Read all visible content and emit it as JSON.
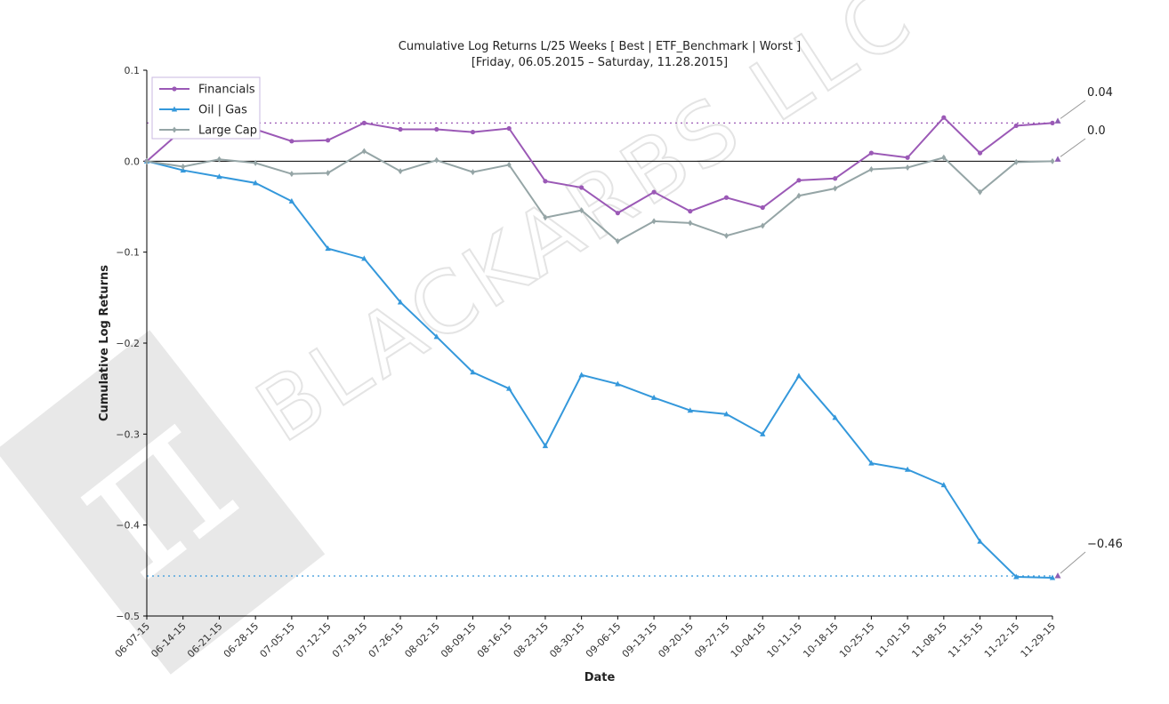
{
  "chart_data": {
    "type": "line",
    "title": "Cumulative Log Returns L/25 Weeks [ Best | ETF_Benchmark | Worst ]",
    "subtitle": "[Friday, 06.05.2015 – Saturday, 11.28.2015]",
    "xlabel": "Date",
    "ylabel": "Cumulative Log Returns",
    "ylim": [
      -0.5,
      0.1
    ],
    "yticks": [
      0.1,
      0.0,
      -0.1,
      -0.2,
      -0.3,
      -0.4,
      -0.5
    ],
    "ytick_labels": [
      "0.1",
      "0.0",
      "−0.1",
      "−0.2",
      "−0.3",
      "−0.4",
      "−0.5"
    ],
    "legend_position": "top-left",
    "categories": [
      "06-07-15",
      "06-14-15",
      "06-21-15",
      "06-28-15",
      "07-05-15",
      "07-12-15",
      "07-19-15",
      "07-26-15",
      "08-02-15",
      "08-09-15",
      "08-16-15",
      "08-23-15",
      "08-30-15",
      "09-06-15",
      "09-13-15",
      "09-20-15",
      "09-27-15",
      "10-04-15",
      "10-11-15",
      "10-18-15",
      "10-25-15",
      "11-01-15",
      "11-08-15",
      "11-15-15",
      "11-22-15",
      "11-29-15"
    ],
    "series": [
      {
        "name": "Financials",
        "color": "#9b59b6",
        "marker": "circle",
        "values": [
          0.0,
          0.035,
          0.03,
          0.035,
          0.022,
          0.023,
          0.042,
          0.035,
          0.035,
          0.032,
          0.036,
          -0.022,
          -0.029,
          -0.057,
          -0.034,
          -0.055,
          -0.04,
          -0.051,
          -0.021,
          -0.019,
          0.009,
          0.004,
          0.048,
          0.009,
          0.039,
          0.042
        ]
      },
      {
        "name": "Oil | Gas",
        "color": "#3498db",
        "marker": "triangle",
        "values": [
          0.0,
          -0.01,
          -0.017,
          -0.024,
          -0.044,
          -0.096,
          -0.107,
          -0.155,
          -0.193,
          -0.232,
          -0.25,
          -0.313,
          -0.235,
          -0.245,
          -0.26,
          -0.274,
          -0.278,
          -0.3,
          -0.236,
          -0.282,
          -0.332,
          -0.339,
          -0.356,
          -0.418,
          -0.457,
          -0.458
        ]
      },
      {
        "name": "Large Cap",
        "color": "#95a5a6",
        "marker": "diamond",
        "values": [
          0.0,
          -0.006,
          0.002,
          -0.002,
          -0.014,
          -0.013,
          0.011,
          -0.011,
          0.001,
          -0.012,
          -0.004,
          -0.062,
          -0.054,
          -0.088,
          -0.066,
          -0.068,
          -0.082,
          -0.071,
          -0.038,
          -0.03,
          -0.009,
          -0.007,
          0.004,
          -0.034,
          -0.001,
          0.0
        ]
      }
    ],
    "reference_lines": [
      {
        "value": 0.042,
        "color": "#9b59b6",
        "style": "dotted"
      },
      {
        "value": 0.0,
        "color": "#000000",
        "style": "solid"
      },
      {
        "value": -0.456,
        "color": "#3498db",
        "style": "dotted"
      }
    ],
    "end_labels": [
      {
        "text": "0.04",
        "series": "Financials"
      },
      {
        "text": "0.0",
        "series": "Large Cap"
      },
      {
        "text": "−0.46",
        "series": "Oil | Gas"
      }
    ],
    "watermark": "BLACKARBS LLC"
  }
}
